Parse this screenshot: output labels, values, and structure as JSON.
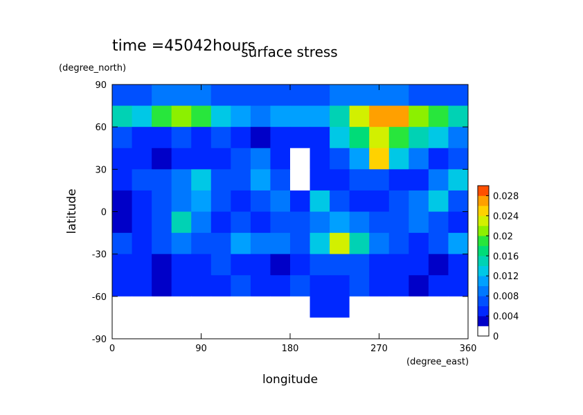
{
  "chart_data": {
    "type": "contour",
    "title": "surface stress",
    "subtitle": "time =45042hours",
    "y_unit": "(degree_north)",
    "x_unit": "(degree_east)",
    "ylabel": "latitude",
    "xlabel": "longitude",
    "x": [
      10,
      30,
      50,
      70,
      90,
      110,
      130,
      150,
      170,
      190,
      210,
      230,
      250,
      270,
      290,
      310,
      330,
      350
    ],
    "y": [
      82.5,
      67.5,
      52.5,
      37.5,
      22.5,
      7.5,
      -7.5,
      -22.5,
      -37.5,
      -52.5,
      -67.5,
      -82.5
    ],
    "z": [
      [
        0.006,
        0.006,
        0.008,
        0.008,
        0.008,
        0.006,
        0.006,
        0.006,
        0.006,
        0.006,
        0.006,
        0.008,
        0.008,
        0.008,
        0.008,
        0.006,
        0.006,
        0.006
      ],
      [
        0.014,
        0.012,
        0.018,
        0.02,
        0.018,
        0.012,
        0.01,
        0.008,
        0.01,
        0.01,
        0.01,
        0.014,
        0.022,
        0.026,
        0.026,
        0.02,
        0.018,
        0.014
      ],
      [
        0.006,
        0.004,
        0.004,
        0.006,
        0.004,
        0.006,
        0.004,
        0.002,
        0.004,
        0.004,
        0.004,
        0.012,
        0.016,
        0.022,
        0.018,
        0.014,
        0.012,
        0.008
      ],
      [
        0.004,
        0.004,
        0.002,
        0.004,
        0.004,
        0.004,
        0.006,
        0.008,
        0.004,
        0,
        0.004,
        0.006,
        0.01,
        0.024,
        0.012,
        0.008,
        0.004,
        0.006
      ],
      [
        0.004,
        0.006,
        0.006,
        0.008,
        0.012,
        0.006,
        0.006,
        0.01,
        0.006,
        0,
        0.004,
        0.004,
        0.006,
        0.006,
        0.004,
        0.004,
        0.008,
        0.012
      ],
      [
        0.002,
        0.004,
        0.006,
        0.008,
        0.01,
        0.006,
        0.004,
        0.006,
        0.008,
        0.004,
        0.012,
        0.006,
        0.004,
        0.004,
        0.006,
        0.008,
        0.012,
        0.006
      ],
      [
        0.002,
        0.004,
        0.006,
        0.014,
        0.008,
        0.004,
        0.006,
        0.004,
        0.006,
        0.006,
        0.008,
        0.01,
        0.008,
        0.006,
        0.006,
        0.008,
        0.006,
        0.004
      ],
      [
        0.006,
        0.004,
        0.006,
        0.008,
        0.006,
        0.006,
        0.01,
        0.008,
        0.008,
        0.006,
        0.012,
        0.022,
        0.014,
        0.008,
        0.006,
        0.004,
        0.006,
        0.01
      ],
      [
        0.004,
        0.004,
        0.002,
        0.004,
        0.004,
        0.006,
        0.004,
        0.004,
        0.002,
        0.004,
        0.006,
        0.006,
        0.006,
        0.004,
        0.004,
        0.004,
        0.002,
        0.004
      ],
      [
        0.004,
        0.004,
        0.002,
        0.004,
        0.004,
        0.004,
        0.006,
        0.004,
        0.004,
        0.006,
        0.004,
        0.004,
        0.006,
        0.004,
        0.004,
        0.002,
        0.004,
        0.004
      ],
      [
        0,
        0,
        0,
        0,
        0,
        0,
        0,
        0,
        0,
        0,
        0.004,
        0.004,
        0,
        0,
        0,
        0,
        0,
        0
      ],
      [
        0,
        0,
        0,
        0,
        0,
        0,
        0,
        0,
        0,
        0,
        0,
        0,
        0,
        0,
        0,
        0,
        0,
        0
      ]
    ],
    "xlim": [
      0,
      360
    ],
    "xticks": [
      0,
      90,
      180,
      270,
      360
    ],
    "ylim": [
      -90,
      90
    ],
    "yticks": [
      -90,
      -60,
      -30,
      0,
      30,
      60,
      90
    ],
    "zlim": [
      0,
      0.03
    ],
    "zticks": [
      0,
      0.004,
      0.008,
      0.012,
      0.016,
      0.02,
      0.024,
      0.028
    ],
    "colors": [
      "#ffffff",
      "#0000c8",
      "#0028ff",
      "#0050ff",
      "#0078ff",
      "#00a0ff",
      "#00c8e6",
      "#00d2b4",
      "#00dc78",
      "#28e63c",
      "#8cf000",
      "#d2f000",
      "#ffd200",
      "#ffa000",
      "#ff5000"
    ]
  }
}
